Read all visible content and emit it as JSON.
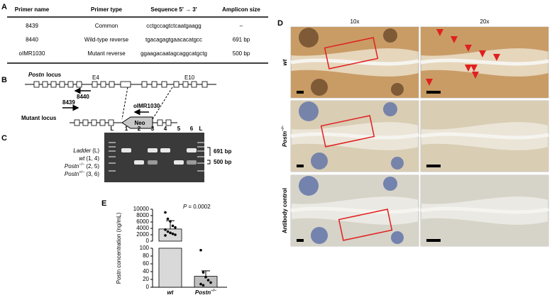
{
  "panel_a": {
    "label": "A",
    "header": [
      "Primer name",
      "Primer type",
      "Sequence 5′ → 3′",
      "Amplicon size"
    ],
    "rows": [
      [
        "8439",
        "Common",
        "cctgccagtctcaatgaagg",
        "–"
      ],
      [
        "8440",
        "Wild-type reverse",
        "tgacagagtgaacacatgcc",
        "691 bp"
      ],
      [
        "oIMR1030",
        "Mutant reverse",
        "ggaagacaatagcaggcatgctg",
        "500 bp"
      ]
    ]
  },
  "panel_b": {
    "label": "B",
    "wt_gene": "Postn",
    "wt_text": "locus",
    "exon_a": "E4",
    "exon_b": "E10",
    "primer_rev": "8440",
    "primer_common": "8439",
    "primer_mut": "oIMR1030",
    "cassette": "Neo",
    "mutant_text": "Mutant locus"
  },
  "panel_c": {
    "label": "C",
    "lanes": [
      "L",
      "1",
      "2",
      "3",
      "4",
      "5",
      "6",
      "L"
    ],
    "legend": [
      {
        "name": "Ladder",
        "lanes": "(L)"
      },
      {
        "name": "wt",
        "lanes": "(1, 4)"
      },
      {
        "name": "Postn",
        "sup": "−/−",
        "lanes": "(2, 5)"
      },
      {
        "name": "Postn",
        "sup": "+/−",
        "lanes": "(3, 6)"
      }
    ],
    "bands": [
      "691 bp",
      "500 bp"
    ]
  },
  "panel_d": {
    "label": "D",
    "columns": [
      "10x",
      "20x"
    ],
    "rows": [
      {
        "name": "wt"
      },
      {
        "name": "Postn",
        "sup": "−/−"
      },
      {
        "name": "Antibody control"
      }
    ]
  },
  "chart_data": {
    "type": "bar",
    "label": "E",
    "ylabel": "Postn concentration (ng/mL)",
    "categories": [
      "wt",
      "Postn"
    ],
    "postn_superscript": "−/−",
    "values": [
      3800,
      28
    ],
    "errors": [
      2600,
      14
    ],
    "points": [
      [
        9000,
        7000,
        6200,
        4800,
        4300,
        3600,
        3000,
        2600,
        2300,
        2000,
        1800
      ],
      [
        95,
        38,
        26,
        18,
        12,
        8,
        5
      ]
    ],
    "colors": [
      "#d9d9d9",
      "#bfbfbf"
    ],
    "ylim": [
      0,
      100
    ],
    "yticks": [
      0,
      20,
      40,
      60,
      80,
      100
    ],
    "y2lim": [
      0,
      10000
    ],
    "y2ticks": [
      0,
      2000,
      4000,
      6000,
      8000,
      10000
    ],
    "p_label": "P",
    "p_value": "= 0.0002"
  }
}
